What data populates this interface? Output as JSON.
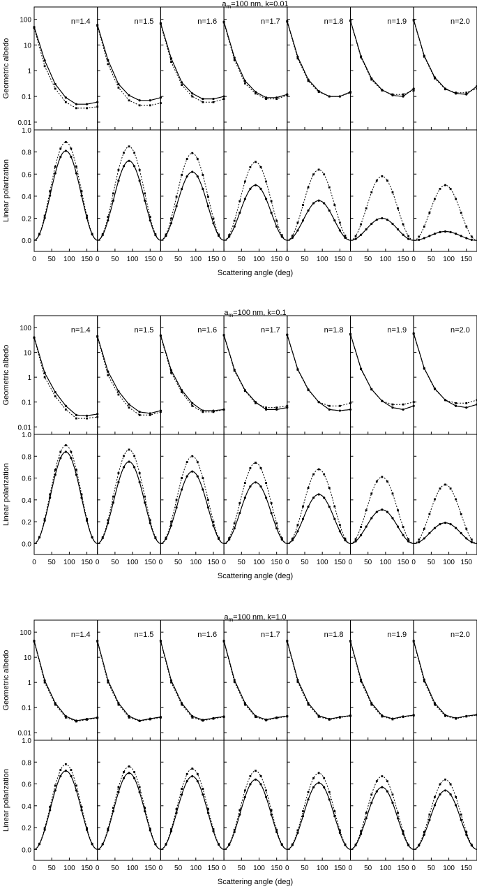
{
  "figure": {
    "xlabel": "Scattering angle (deg)",
    "ylabel_albedo": "Geometric albedo",
    "ylabel_polarization": "Linear polarization",
    "x_ticks": [
      "0",
      "50",
      "100",
      "150"
    ],
    "albedo_ticks": [
      "100",
      "10",
      "1",
      "0.1",
      "0.01"
    ],
    "polarization_ticks": [
      "1.0",
      "0.8",
      "0.6",
      "0.4",
      "0.2",
      "0.0"
    ]
  },
  "chart_data": [
    {
      "type": "line",
      "title_main": "a",
      "title_sub": "m",
      "title_rest": "=100 nm, k=0.01",
      "xlim": [
        0,
        180
      ],
      "albedo_ylim": [
        0.005,
        300
      ],
      "albedo_scale": "log",
      "polarization_ylim": [
        -0.1,
        1.0
      ],
      "panels": [
        {
          "label": "n=1.4",
          "albedo_solid": [
            50,
            2.5,
            0.3,
            0.09,
            0.05,
            0.05,
            0.06
          ],
          "albedo_dotted": [
            45,
            1.5,
            0.2,
            0.06,
            0.035,
            0.035,
            0.04
          ],
          "pol_solid": 0.81,
          "pol_dotted": 0.89
        },
        {
          "label": "n=1.5",
          "albedo_solid": [
            60,
            2.6,
            0.3,
            0.11,
            0.07,
            0.07,
            0.09
          ],
          "albedo_dotted": [
            55,
            1.8,
            0.22,
            0.07,
            0.045,
            0.045,
            0.055
          ],
          "pol_solid": 0.72,
          "pol_dotted": 0.85
        },
        {
          "label": "n=1.6",
          "albedo_solid": [
            70,
            3.0,
            0.35,
            0.13,
            0.08,
            0.08,
            0.1
          ],
          "albedo_dotted": [
            65,
            2.2,
            0.28,
            0.1,
            0.06,
            0.06,
            0.08
          ],
          "pol_solid": 0.62,
          "pol_dotted": 0.79
        },
        {
          "label": "n=1.7",
          "albedo_solid": [
            80,
            3.2,
            0.4,
            0.15,
            0.09,
            0.09,
            0.12
          ],
          "albedo_dotted": [
            75,
            2.6,
            0.32,
            0.13,
            0.08,
            0.08,
            0.11
          ],
          "pol_solid": 0.5,
          "pol_dotted": 0.71
        },
        {
          "label": "n=1.8",
          "albedo_solid": [
            85,
            3.5,
            0.45,
            0.16,
            0.1,
            0.1,
            0.15
          ],
          "albedo_dotted": [
            80,
            3.0,
            0.4,
            0.15,
            0.1,
            0.1,
            0.14
          ],
          "pol_solid": 0.36,
          "pol_dotted": 0.64
        },
        {
          "label": "n=1.9",
          "albedo_solid": [
            90,
            3.6,
            0.5,
            0.18,
            0.11,
            0.1,
            0.2
          ],
          "albedo_dotted": [
            85,
            3.3,
            0.45,
            0.17,
            0.12,
            0.12,
            0.17
          ],
          "pol_solid": 0.2,
          "pol_dotted": 0.58
        },
        {
          "label": "n=2.0",
          "albedo_solid": [
            95,
            3.8,
            0.55,
            0.2,
            0.13,
            0.12,
            0.25
          ],
          "albedo_dotted": [
            90,
            3.5,
            0.5,
            0.19,
            0.14,
            0.14,
            0.2
          ],
          "pol_solid": 0.08,
          "pol_dotted": 0.5
        }
      ]
    },
    {
      "type": "line",
      "title_main": "a",
      "title_sub": "m",
      "title_rest": "=100 nm, k=0.1",
      "xlim": [
        0,
        180
      ],
      "albedo_ylim": [
        0.005,
        300
      ],
      "albedo_scale": "log",
      "polarization_ylim": [
        -0.1,
        1.0
      ],
      "panels": [
        {
          "label": "n=1.4",
          "albedo_solid": [
            40,
            1.5,
            0.25,
            0.07,
            0.03,
            0.028,
            0.033
          ],
          "albedo_dotted": [
            38,
            1.0,
            0.17,
            0.05,
            0.022,
            0.022,
            0.025
          ],
          "pol_solid": 0.84,
          "pol_dotted": 0.9
        },
        {
          "label": "n=1.5",
          "albedo_solid": [
            45,
            1.7,
            0.27,
            0.08,
            0.04,
            0.035,
            0.045
          ],
          "albedo_dotted": [
            42,
            1.2,
            0.2,
            0.06,
            0.03,
            0.03,
            0.04
          ],
          "pol_solid": 0.75,
          "pol_dotted": 0.86
        },
        {
          "label": "n=1.6",
          "albedo_solid": [
            48,
            1.9,
            0.3,
            0.09,
            0.045,
            0.045,
            0.05
          ],
          "albedo_dotted": [
            45,
            1.5,
            0.25,
            0.07,
            0.04,
            0.04,
            0.05
          ],
          "pol_solid": 0.66,
          "pol_dotted": 0.8
        },
        {
          "label": "n=1.7",
          "albedo_solid": [
            50,
            2.0,
            0.3,
            0.1,
            0.05,
            0.05,
            0.06
          ],
          "albedo_dotted": [
            48,
            1.8,
            0.28,
            0.09,
            0.06,
            0.06,
            0.07
          ],
          "pol_solid": 0.56,
          "pol_dotted": 0.74
        },
        {
          "label": "n=1.8",
          "albedo_solid": [
            52,
            2.1,
            0.32,
            0.1,
            0.05,
            0.045,
            0.05
          ],
          "albedo_dotted": [
            50,
            2.0,
            0.3,
            0.1,
            0.07,
            0.07,
            0.09
          ],
          "pol_solid": 0.45,
          "pol_dotted": 0.68
        },
        {
          "label": "n=1.9",
          "albedo_solid": [
            55,
            2.2,
            0.33,
            0.11,
            0.06,
            0.05,
            0.07
          ],
          "albedo_dotted": [
            52,
            2.1,
            0.32,
            0.11,
            0.08,
            0.08,
            0.1
          ],
          "pol_solid": 0.31,
          "pol_dotted": 0.61
        },
        {
          "label": "n=2.0",
          "albedo_solid": [
            58,
            2.3,
            0.35,
            0.12,
            0.07,
            0.06,
            0.08
          ],
          "albedo_dotted": [
            55,
            2.2,
            0.33,
            0.12,
            0.09,
            0.09,
            0.12
          ],
          "pol_solid": 0.19,
          "pol_dotted": 0.54
        }
      ]
    },
    {
      "type": "line",
      "title_main": "a",
      "title_sub": "m",
      "title_rest": "=100 nm, k=1.0",
      "xlim": [
        0,
        180
      ],
      "albedo_ylim": [
        0.005,
        300
      ],
      "albedo_scale": "log",
      "polarization_ylim": [
        -0.1,
        1.0
      ],
      "panels": [
        {
          "label": "n=1.4",
          "albedo_solid": [
            45,
            1.2,
            0.15,
            0.045,
            0.03,
            0.035,
            0.04
          ],
          "albedo_dotted": [
            42,
            1.0,
            0.13,
            0.04,
            0.028,
            0.033,
            0.038
          ],
          "pol_solid": 0.72,
          "pol_dotted": 0.78
        },
        {
          "label": "n=1.5",
          "albedo_solid": [
            45,
            1.2,
            0.15,
            0.045,
            0.03,
            0.036,
            0.042
          ],
          "albedo_dotted": [
            42,
            1.0,
            0.13,
            0.04,
            0.029,
            0.034,
            0.04
          ],
          "pol_solid": 0.7,
          "pol_dotted": 0.76
        },
        {
          "label": "n=1.6",
          "albedo_solid": [
            45,
            1.2,
            0.15,
            0.045,
            0.032,
            0.038,
            0.044
          ],
          "albedo_dotted": [
            42,
            1.0,
            0.13,
            0.04,
            0.03,
            0.036,
            0.042
          ],
          "pol_solid": 0.67,
          "pol_dotted": 0.74
        },
        {
          "label": "n=1.7",
          "albedo_solid": [
            45,
            1.25,
            0.15,
            0.046,
            0.033,
            0.04,
            0.046
          ],
          "albedo_dotted": [
            42,
            1.05,
            0.13,
            0.042,
            0.031,
            0.038,
            0.044
          ],
          "pol_solid": 0.64,
          "pol_dotted": 0.72
        },
        {
          "label": "n=1.8",
          "albedo_solid": [
            45,
            1.25,
            0.15,
            0.047,
            0.035,
            0.042,
            0.048
          ],
          "albedo_dotted": [
            42,
            1.05,
            0.13,
            0.043,
            0.033,
            0.04,
            0.046
          ],
          "pol_solid": 0.61,
          "pol_dotted": 0.7
        },
        {
          "label": "n=1.9",
          "albedo_solid": [
            45,
            1.3,
            0.15,
            0.048,
            0.036,
            0.044,
            0.05
          ],
          "albedo_dotted": [
            42,
            1.1,
            0.13,
            0.044,
            0.034,
            0.042,
            0.048
          ],
          "pol_solid": 0.57,
          "pol_dotted": 0.67
        },
        {
          "label": "n=2.0",
          "albedo_solid": [
            45,
            1.3,
            0.15,
            0.05,
            0.038,
            0.046,
            0.052
          ],
          "albedo_dotted": [
            42,
            1.1,
            0.13,
            0.046,
            0.036,
            0.044,
            0.05
          ],
          "pol_solid": 0.54,
          "pol_dotted": 0.64
        }
      ]
    }
  ]
}
